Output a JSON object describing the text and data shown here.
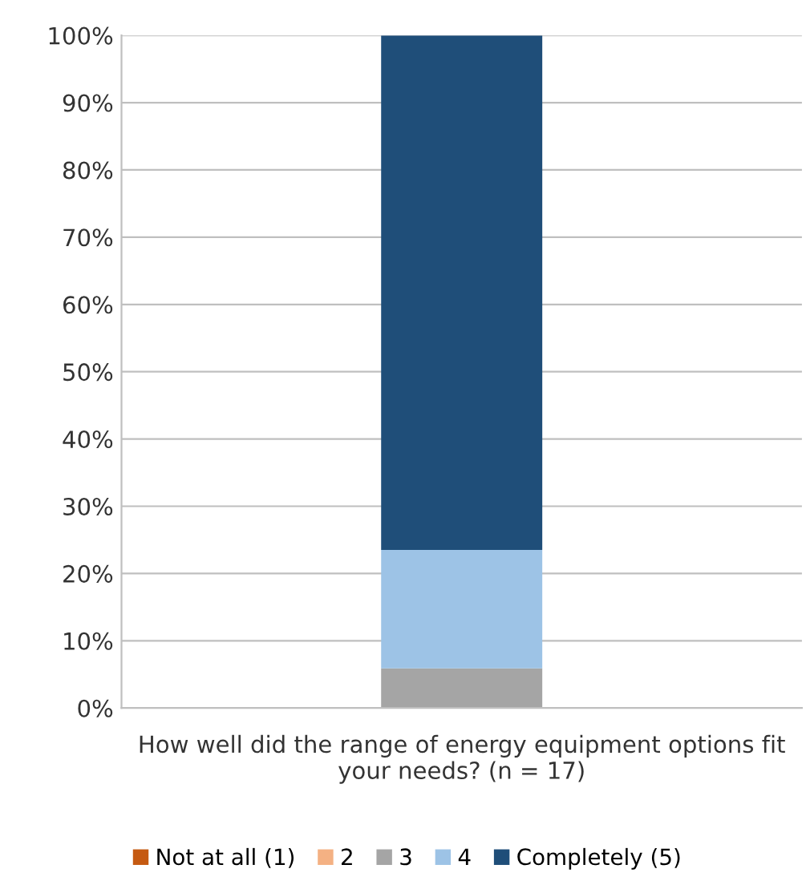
{
  "chart_data": {
    "type": "bar",
    "stacked": true,
    "categories": [
      "How well did the range of energy equipment options fit your needs? (n = 17)"
    ],
    "series": [
      {
        "name": "Not at all (1)",
        "color": "#c55a11",
        "values": [
          0
        ]
      },
      {
        "name": "2",
        "color": "#f4b183",
        "values": [
          0
        ]
      },
      {
        "name": "3",
        "color": "#a5a5a5",
        "values": [
          5.9
        ]
      },
      {
        "name": "4",
        "color": "#9dc3e6",
        "values": [
          17.6
        ]
      },
      {
        "name": "Completely (5)",
        "color": "#1f4e79",
        "values": [
          76.5
        ]
      }
    ],
    "ylim": [
      0,
      100
    ],
    "yticks": [
      {
        "value": 0,
        "label": "0%"
      },
      {
        "value": 10,
        "label": "10%"
      },
      {
        "value": 20,
        "label": "20%"
      },
      {
        "value": 30,
        "label": "30%"
      },
      {
        "value": 40,
        "label": "40%"
      },
      {
        "value": 50,
        "label": "50%"
      },
      {
        "value": 60,
        "label": "60%"
      },
      {
        "value": 70,
        "label": "70%"
      },
      {
        "value": 80,
        "label": "80%"
      },
      {
        "value": 90,
        "label": "90%"
      },
      {
        "value": 100,
        "label": "100%"
      }
    ],
    "grid": "y",
    "legend": "bottom"
  }
}
